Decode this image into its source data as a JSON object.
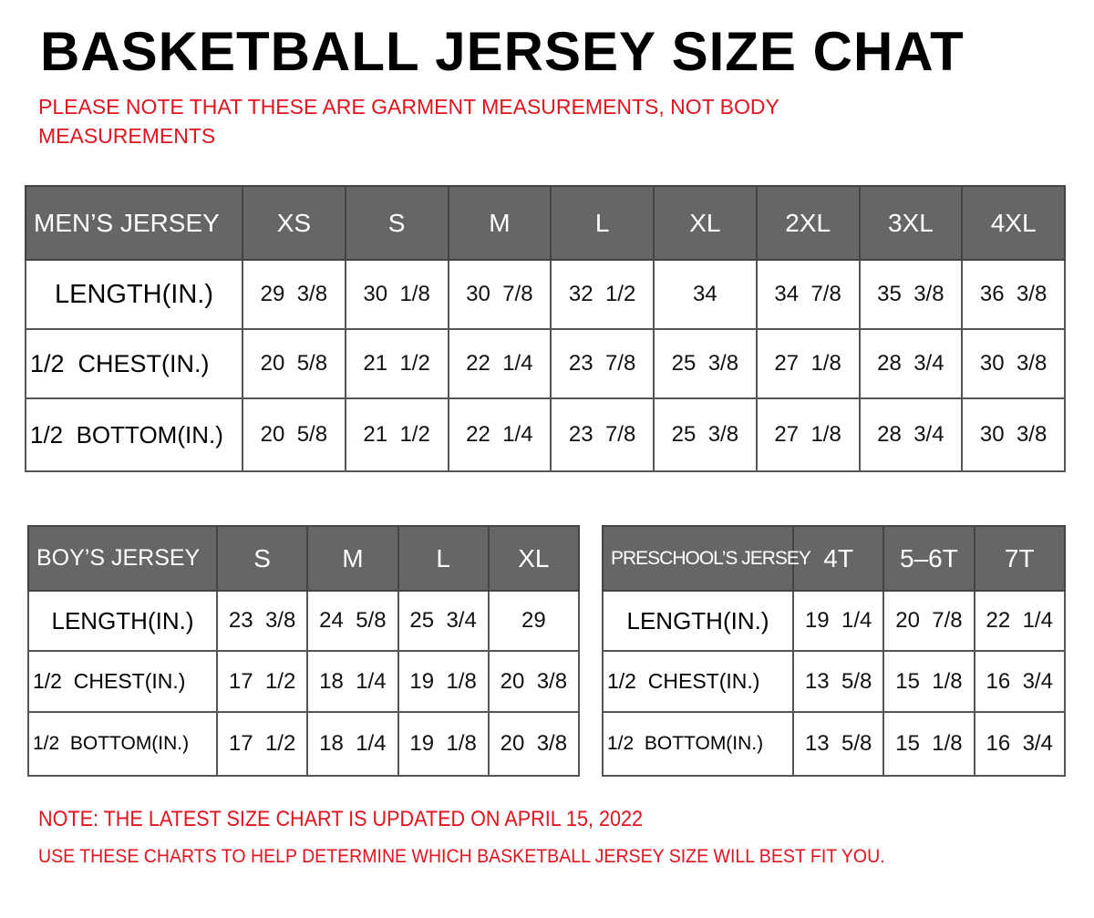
{
  "title": "BASKETBALL JERSEY SIZE CHAT",
  "subtitle": [
    "PLEASE NOTE THAT THESE ARE GARMENT MEASUREMENTS, NOT BODY",
    "MEASUREMENTS"
  ],
  "colors": {
    "header_bg": "#666666",
    "note": "#e0141e"
  },
  "mens": {
    "header": "MEN’S JERSEY",
    "sizes": [
      "XS",
      "S",
      "M",
      "L",
      "XL",
      "2XL",
      "3XL",
      "4XL"
    ],
    "rows": [
      {
        "label": "LENGTH(IN.)",
        "values": [
          "29  3/8",
          "30  1/8",
          "30  7/8",
          "32  1/2",
          "34",
          "34  7/8",
          "35  3/8",
          "36  3/8"
        ]
      },
      {
        "label": "1/2  CHEST(IN.)",
        "values": [
          "20  5/8",
          "21  1/2",
          "22  1/4",
          "23  7/8",
          "25  3/8",
          "27  1/8",
          "28  3/4",
          "30  3/8"
        ]
      },
      {
        "label": "1/2  BOTTOM(IN.)",
        "values": [
          "20  5/8",
          "21  1/2",
          "22  1/4",
          "23  7/8",
          "25  3/8",
          "27  1/8",
          "28  3/4",
          "30  3/8"
        ]
      }
    ]
  },
  "boys": {
    "header": "BOY’S JERSEY",
    "sizes": [
      "S",
      "M",
      "L",
      "XL"
    ],
    "rows": [
      {
        "label": "LENGTH(IN.)",
        "values": [
          "23  3/8",
          "24  5/8",
          "25  3/4",
          "29"
        ]
      },
      {
        "label": "1/2  CHEST(IN.)",
        "values": [
          "17  1/2",
          "18  1/4",
          "19  1/8",
          "20  3/8"
        ]
      },
      {
        "label": "1/2  BOTTOM(IN.)",
        "values": [
          "17  1/2",
          "18  1/4",
          "19  1/8",
          "20  3/8"
        ]
      }
    ]
  },
  "preschool": {
    "header": "PRESCHOOL’S JERSEY",
    "sizes": [
      "4T",
      "5–6T",
      "7T"
    ],
    "rows": [
      {
        "label": "LENGTH(IN.)",
        "values": [
          "19  1/4",
          "20  7/8",
          "22  1/4"
        ]
      },
      {
        "label": "1/2  CHEST(IN.)",
        "values": [
          "13  5/8",
          "15  1/8",
          "16  3/4"
        ]
      },
      {
        "label": "1/2  BOTTOM(IN.)",
        "values": [
          "13  5/8",
          "15  1/8",
          "16  3/4"
        ]
      }
    ]
  },
  "footer": [
    "NOTE: THE LATEST SIZE CHART IS UPDATED ON APRIL 15, 2022",
    "USE THESE CHARTS TO HELP DETERMINE WHICH  BASKETBALL JERSEY  SIZE WILL BEST FIT YOU."
  ]
}
